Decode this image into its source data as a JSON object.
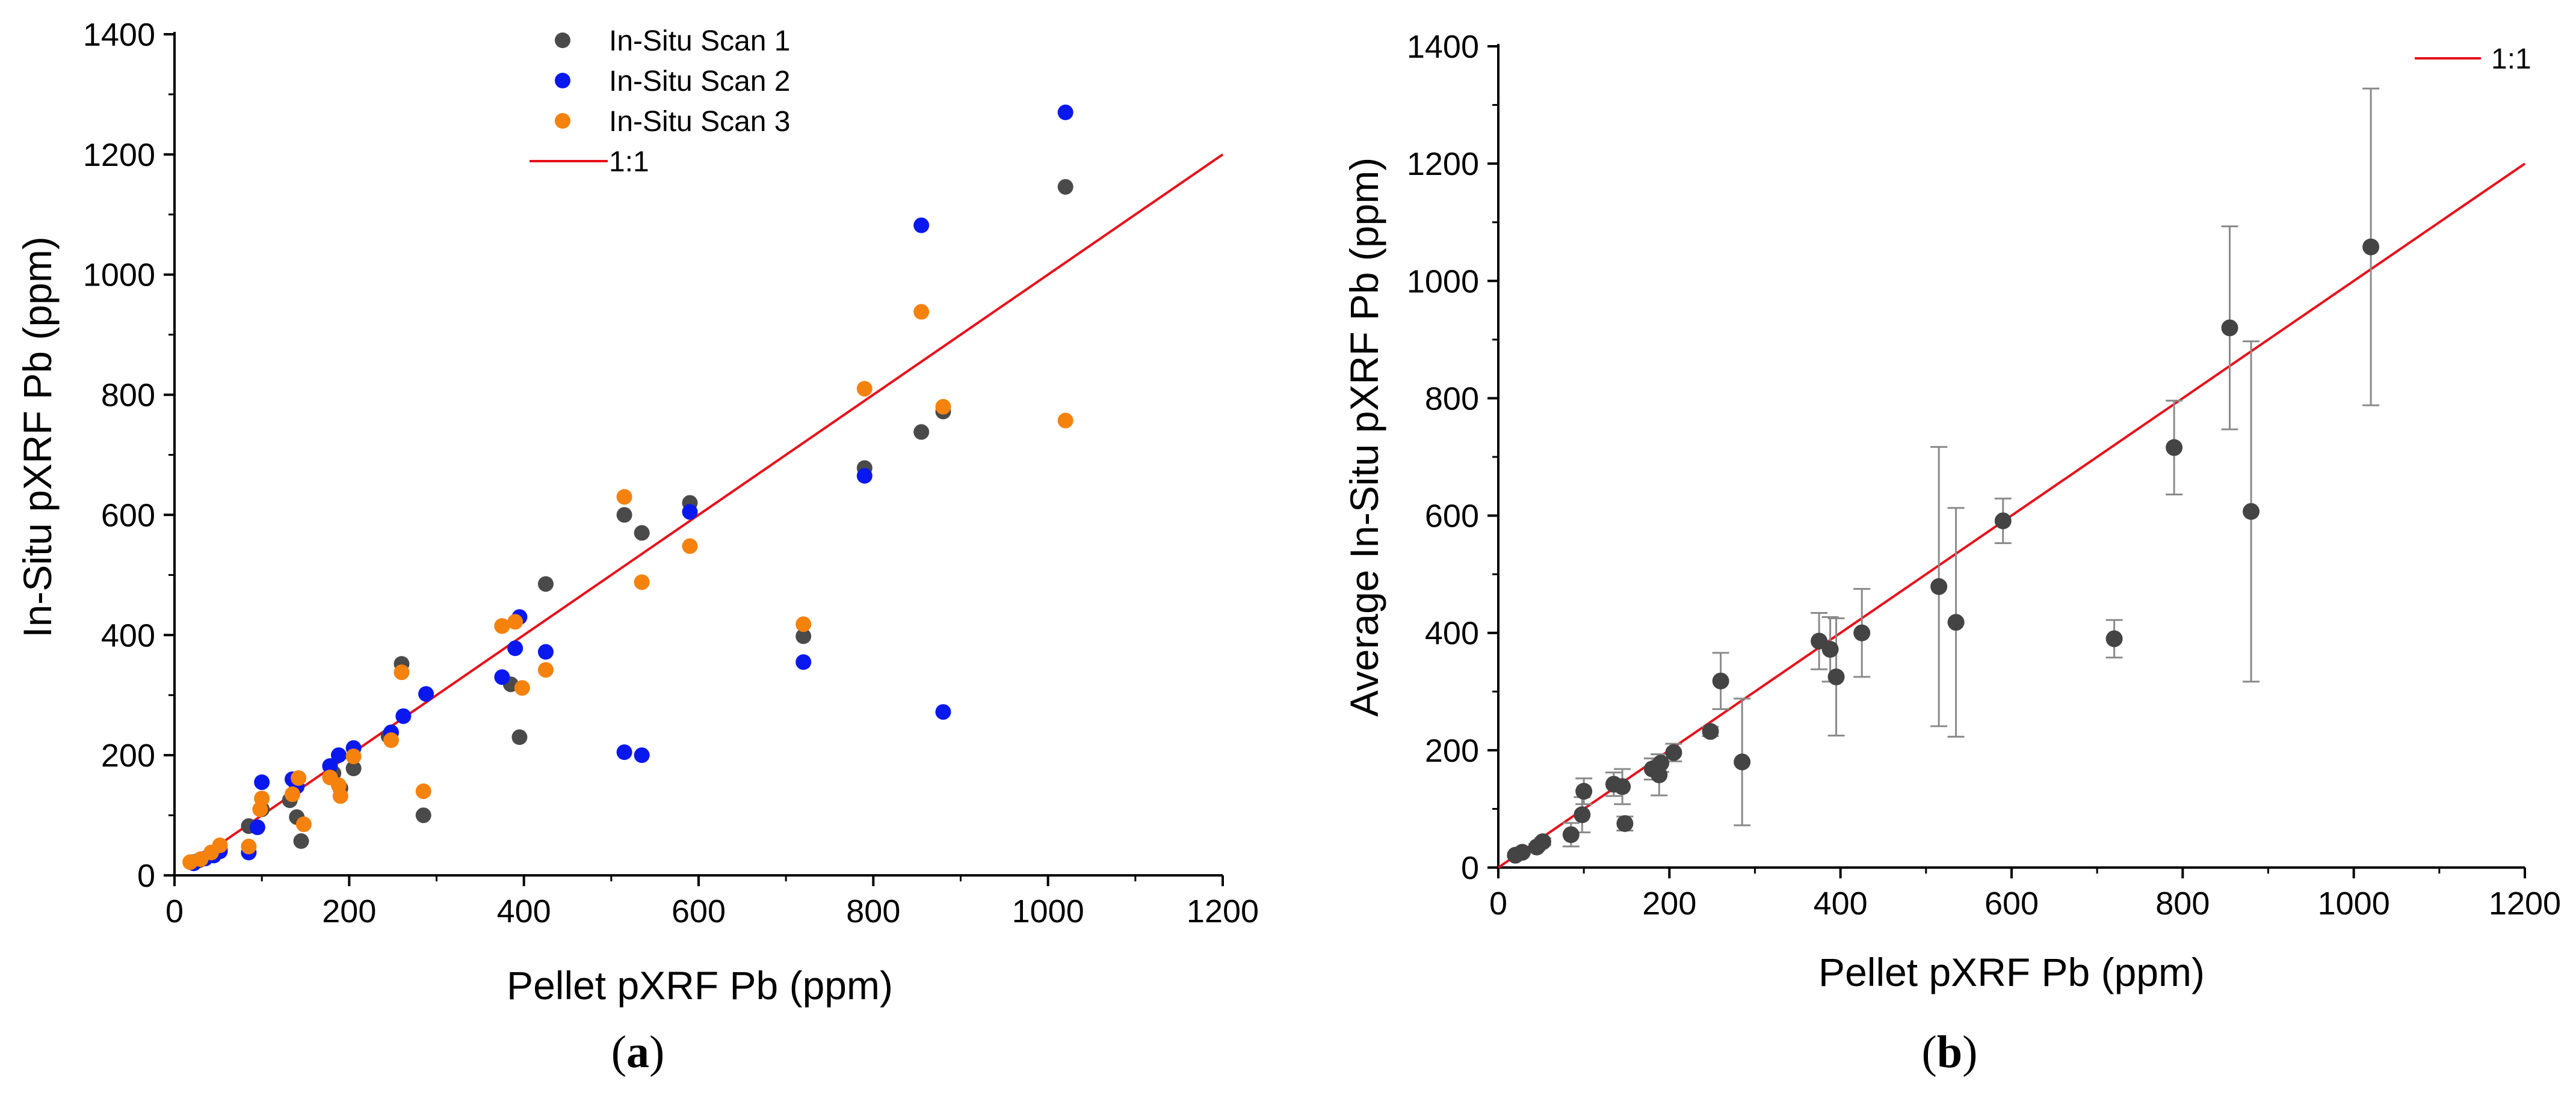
{
  "colors": {
    "scan1": "#4a4a4a",
    "scan2": "#0a18f0",
    "scan3": "#f5820d",
    "ref": "#e8101a",
    "avg": "#444444",
    "errbar": "#8a8a8a"
  },
  "chart_data": [
    {
      "type": "scatter",
      "panel_label": "a",
      "xlabel": "Pellet pXRF Pb (ppm)",
      "ylabel": "In-Situ pXRF Pb (ppm)",
      "xlim": [
        0,
        1200
      ],
      "ylim": [
        0,
        1400
      ],
      "xticks": [
        0,
        200,
        400,
        600,
        800,
        1000,
        1200
      ],
      "yticks": [
        0,
        200,
        400,
        600,
        800,
        1000,
        1200,
        1400
      ],
      "legend_position": "top-center",
      "reference_line": {
        "name": "1:1",
        "points": [
          [
            20,
            20
          ],
          [
            1200,
            1200
          ]
        ]
      },
      "series": [
        {
          "name": "In-Situ Scan 1",
          "color": "#4a4a4a",
          "points": [
            [
              20,
              22
            ],
            [
              28,
              25
            ],
            [
              45,
              35
            ],
            [
              52,
              42
            ],
            [
              85,
              82
            ],
            [
              100,
              110
            ],
            [
              132,
              125
            ],
            [
              140,
              97
            ],
            [
              145,
              57
            ],
            [
              182,
              170
            ],
            [
              190,
              145
            ],
            [
              205,
              178
            ],
            [
              245,
              232
            ],
            [
              260,
              352
            ],
            [
              285,
              100
            ],
            [
              375,
              415
            ],
            [
              385,
              318
            ],
            [
              395,
              230
            ],
            [
              425,
              485
            ],
            [
              515,
              600
            ],
            [
              535,
              570
            ],
            [
              590,
              620
            ],
            [
              720,
              398
            ],
            [
              790,
              678
            ],
            [
              855,
              738
            ],
            [
              880,
              772
            ],
            [
              1020,
              1146
            ]
          ]
        },
        {
          "name": "In-Situ Scan 2",
          "color": "#0a18f0",
          "points": [
            [
              22,
              20
            ],
            [
              35,
              28
            ],
            [
              45,
              33
            ],
            [
              52,
              40
            ],
            [
              85,
              38
            ],
            [
              95,
              80
            ],
            [
              100,
              155
            ],
            [
              135,
              160
            ],
            [
              140,
              148
            ],
            [
              178,
              182
            ],
            [
              188,
              200
            ],
            [
              205,
              212
            ],
            [
              248,
              238
            ],
            [
              262,
              265
            ],
            [
              288,
              302
            ],
            [
              375,
              330
            ],
            [
              390,
              378
            ],
            [
              395,
              430
            ],
            [
              425,
              372
            ],
            [
              515,
              205
            ],
            [
              535,
              200
            ],
            [
              590,
              605
            ],
            [
              720,
              355
            ],
            [
              790,
              665
            ],
            [
              855,
              1082
            ],
            [
              880,
              272
            ],
            [
              1020,
              1270
            ]
          ]
        },
        {
          "name": "In-Situ Scan 3",
          "color": "#f5820d",
          "points": [
            [
              18,
              22
            ],
            [
              30,
              27
            ],
            [
              42,
              38
            ],
            [
              52,
              50
            ],
            [
              85,
              48
            ],
            [
              98,
              110
            ],
            [
              100,
              128
            ],
            [
              135,
              135
            ],
            [
              142,
              162
            ],
            [
              148,
              85
            ],
            [
              178,
              163
            ],
            [
              188,
              150
            ],
            [
              190,
              132
            ],
            [
              205,
              198
            ],
            [
              248,
              225
            ],
            [
              260,
              338
            ],
            [
              285,
              140
            ],
            [
              375,
              415
            ],
            [
              390,
              422
            ],
            [
              398,
              312
            ],
            [
              425,
              342
            ],
            [
              515,
              630
            ],
            [
              535,
              488
            ],
            [
              590,
              548
            ],
            [
              720,
              418
            ],
            [
              790,
              810
            ],
            [
              855,
              938
            ],
            [
              880,
              780
            ],
            [
              1020,
              757
            ]
          ]
        }
      ]
    },
    {
      "type": "scatter",
      "panel_label": "b",
      "xlabel": "Pellet pXRF Pb (ppm)",
      "ylabel": "Average In-Situ pXRF Pb (ppm)",
      "xlim": [
        0,
        1200
      ],
      "ylim": [
        0,
        1400
      ],
      "xticks": [
        0,
        200,
        400,
        600,
        800,
        1000,
        1200
      ],
      "yticks": [
        0,
        200,
        400,
        600,
        800,
        1000,
        1200,
        1400
      ],
      "legend_position": "top-right",
      "reference_line": {
        "name": "1:1",
        "points": [
          [
            0,
            0
          ],
          [
            1200,
            1200
          ]
        ]
      },
      "series": [
        {
          "name": "Average In-Situ",
          "color": "#444444",
          "points": [
            [
              20,
              21,
              3
            ],
            [
              28,
              26,
              3
            ],
            [
              45,
              35,
              5
            ],
            [
              52,
              44,
              6
            ],
            [
              85,
              56,
              20
            ],
            [
              98,
              90,
              30
            ],
            [
              100,
              130,
              22
            ],
            [
              135,
              142,
              20
            ],
            [
              145,
              138,
              30
            ],
            [
              148,
              75,
              12
            ],
            [
              180,
              168,
              18
            ],
            [
              188,
              158,
              35
            ],
            [
              190,
              178,
              15
            ],
            [
              205,
              196,
              15
            ],
            [
              248,
              232,
              8
            ],
            [
              260,
              318,
              48
            ],
            [
              285,
              180,
              108
            ],
            [
              375,
              386,
              48
            ],
            [
              388,
              372,
              55
            ],
            [
              395,
              325,
              100
            ],
            [
              425,
              400,
              75
            ],
            [
              515,
              479,
              238
            ],
            [
              535,
              418,
              195
            ],
            [
              590,
              591,
              38
            ],
            [
              720,
              390,
              32
            ],
            [
              790,
              716,
              80
            ],
            [
              855,
              920,
              173
            ],
            [
              880,
              607,
              290
            ],
            [
              1020,
              1058,
              270
            ]
          ]
        }
      ]
    }
  ]
}
